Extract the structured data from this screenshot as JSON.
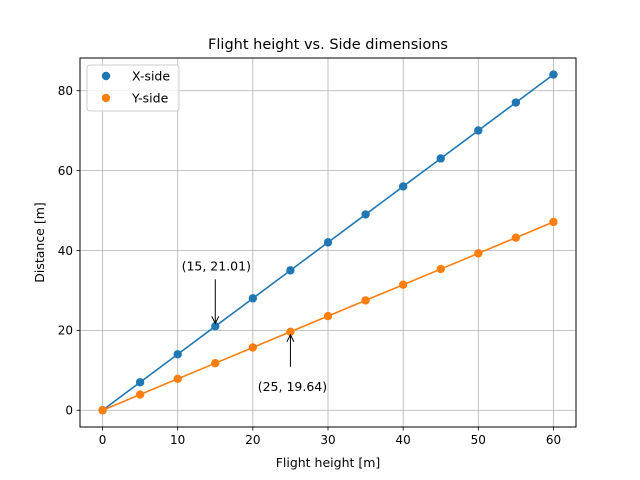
{
  "chart_data": {
    "type": "line",
    "title": "Flight height vs. Side dimensions",
    "xlabel": "Flight height [m]",
    "ylabel": "Distance [m]",
    "xlim": [
      -3,
      63
    ],
    "ylim": [
      -4.2,
      88.2
    ],
    "xticks": [
      0,
      10,
      20,
      30,
      40,
      50,
      60
    ],
    "yticks": [
      0,
      20,
      40,
      60,
      80
    ],
    "grid": true,
    "legend_position": "top-left",
    "x": [
      0,
      5,
      10,
      15,
      20,
      25,
      30,
      35,
      40,
      45,
      50,
      55,
      60
    ],
    "series": [
      {
        "name": "X-side",
        "color": "#1f77b4",
        "values": [
          0,
          7.0,
          14.01,
          21.01,
          28.02,
          35.02,
          42.03,
          49.03,
          56.04,
          63.04,
          70.05,
          77.05,
          84.06
        ]
      },
      {
        "name": "Y-side",
        "color": "#ff7f0e",
        "values": [
          0,
          3.93,
          7.86,
          11.78,
          15.71,
          19.64,
          23.57,
          27.5,
          31.43,
          35.35,
          39.28,
          43.21,
          47.14
        ]
      }
    ],
    "annotations": [
      {
        "text": "(15, 21.01)",
        "x": 15,
        "y": 21.01,
        "series": 0,
        "placement": "above"
      },
      {
        "text": "(25, 19.64)",
        "x": 25,
        "y": 19.64,
        "series": 1,
        "placement": "below"
      }
    ]
  }
}
